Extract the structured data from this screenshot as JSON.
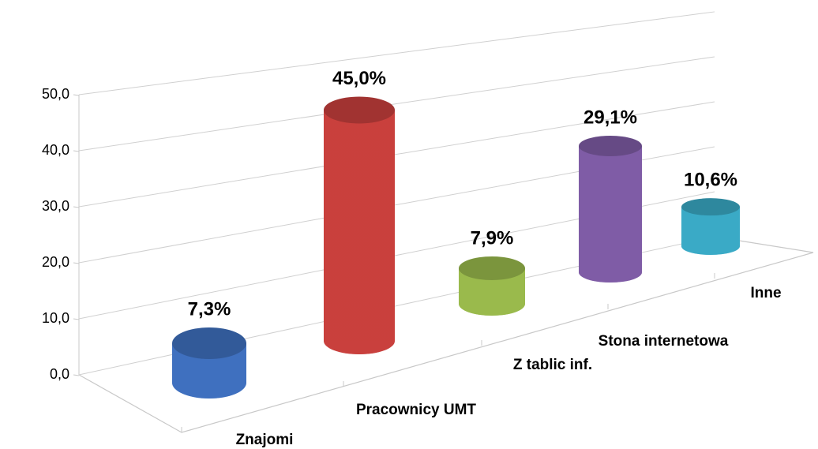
{
  "chart_data": {
    "type": "bar3d",
    "categories": [
      "Znajomi",
      "Pracownicy UMT",
      "Z tablic inf.",
      "Stona internetowa",
      "Inne"
    ],
    "values": [
      7.3,
      45.0,
      7.9,
      29.1,
      10.6
    ],
    "value_labels": [
      "7,3%",
      "45,0%",
      "7,9%",
      "29,1%",
      "10,6%"
    ],
    "colors": [
      "#3f70bf",
      "#c9403d",
      "#9aba4c",
      "#7f5ca6",
      "#3aaac6"
    ],
    "ylim": [
      0,
      50
    ],
    "yticks": [
      {
        "value": 0,
        "label": "0,0"
      },
      {
        "value": 10,
        "label": "10,0"
      },
      {
        "value": 20,
        "label": "20,0"
      },
      {
        "value": 30,
        "label": "30,0"
      },
      {
        "value": 40,
        "label": "40,0"
      },
      {
        "value": 50,
        "label": "50,0"
      }
    ],
    "grid": true
  }
}
